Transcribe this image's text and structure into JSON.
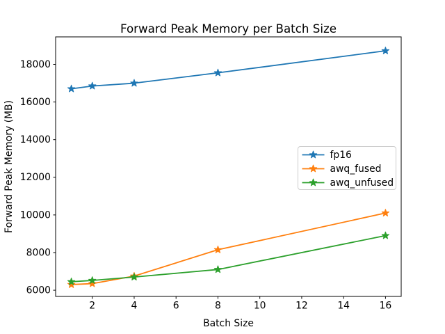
{
  "figure": {
    "background": "#ffffff"
  },
  "chart_data": {
    "type": "line",
    "title": "Forward Peak Memory per Batch Size",
    "xlabel": "Batch Size",
    "ylabel": "Forward Peak Memory (MB)",
    "x": [
      1,
      2,
      4,
      8,
      16
    ],
    "series": [
      {
        "name": "fp16",
        "color": "#1f77b4",
        "marker": "star",
        "values": [
          16700,
          16850,
          17000,
          17550,
          18720
        ]
      },
      {
        "name": "awq_fused",
        "color": "#ff7f0e",
        "marker": "star",
        "values": [
          6300,
          6350,
          6750,
          8150,
          10100
        ]
      },
      {
        "name": "awq_unfused",
        "color": "#2ca02c",
        "marker": "star",
        "values": [
          6450,
          6520,
          6700,
          7100,
          8900
        ]
      }
    ],
    "xticks": [
      2,
      4,
      6,
      8,
      10,
      12,
      14,
      16
    ],
    "yticks": [
      6000,
      8000,
      10000,
      12000,
      14000,
      16000,
      18000
    ],
    "xlim": [
      0.25,
      16.75
    ],
    "ylim": [
      5670,
      19460
    ],
    "grid": false,
    "legend": {
      "position": "center right",
      "border_color": "#cccccc",
      "background": "#ffffff"
    },
    "axis_color": "#000000"
  }
}
